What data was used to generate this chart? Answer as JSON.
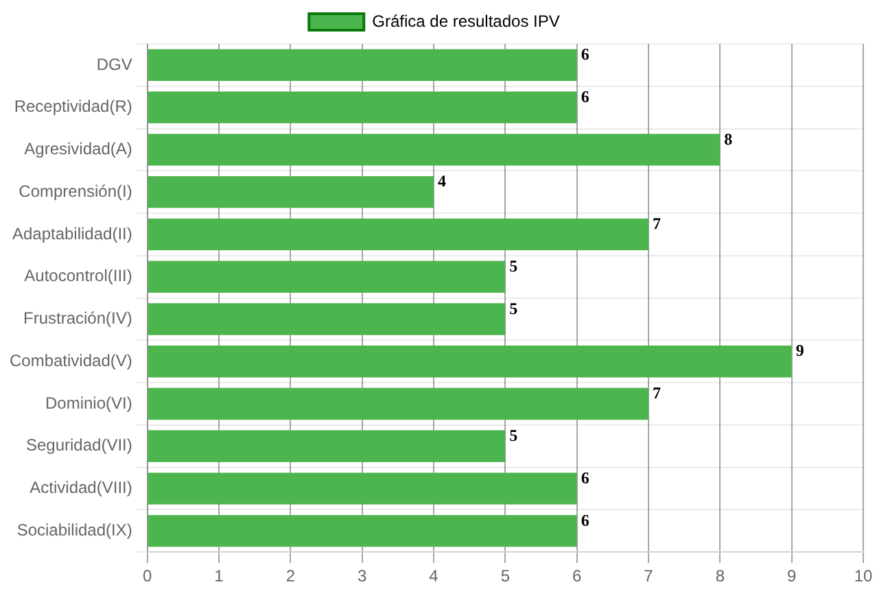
{
  "chart_data": {
    "type": "bar",
    "orientation": "horizontal",
    "categories": [
      "DGV",
      "Receptividad(R)",
      "Agresividad(A)",
      "Comprensión(I)",
      "Adaptabilidad(II)",
      "Autocontrol(III)",
      "Frustración(IV)",
      "Combatividad(V)",
      "Dominio(VI)",
      "Seguridad(VII)",
      "Actividad(VIII)",
      "Sociabilidad(IX)"
    ],
    "series": [
      {
        "name": "Gráfica de resultados IPV",
        "color": "#4db54d",
        "values": [
          6,
          6,
          8,
          4,
          7,
          5,
          5,
          9,
          7,
          5,
          6,
          6
        ]
      }
    ],
    "xlim": [
      0,
      10
    ],
    "xticks": [
      0,
      1,
      2,
      3,
      4,
      5,
      6,
      7,
      8,
      9,
      10
    ],
    "grid": true,
    "legend": "top",
    "data_labels": true
  }
}
